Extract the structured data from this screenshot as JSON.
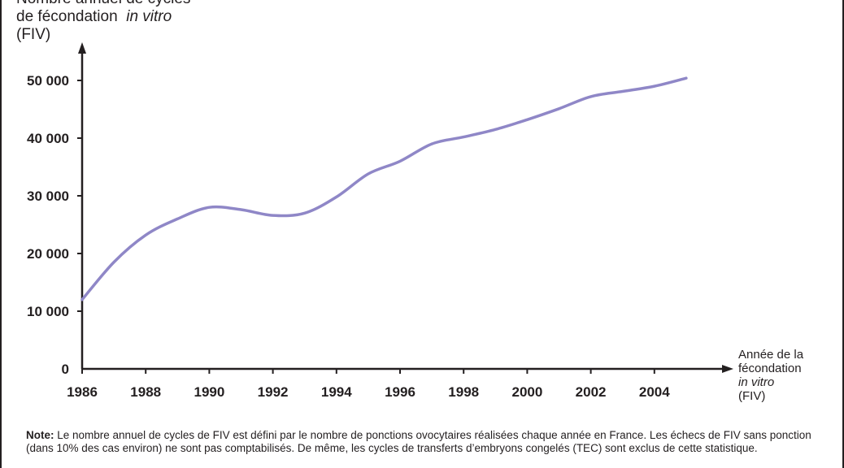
{
  "chart_data": {
    "type": "line",
    "title": "",
    "ylabel_line1": "Nombre annuel de cycles",
    "ylabel_line2_pre": "de fécondation",
    "ylabel_line2_ital": "in vitro",
    "ylabel_line3": "(FIV)",
    "xlabel_line1": "Année de la",
    "xlabel_line2": "fécondation",
    "xlabel_line3_ital": "in vitro",
    "xlabel_line4": "(FIV)",
    "ylim": [
      0,
      52000
    ],
    "xlim": [
      1986,
      2006
    ],
    "yticks": [
      {
        "value": 0,
        "label": "0"
      },
      {
        "value": 10000,
        "label": "10 000"
      },
      {
        "value": 20000,
        "label": "20 000"
      },
      {
        "value": 30000,
        "label": "30 000"
      },
      {
        "value": 40000,
        "label": "40 000"
      },
      {
        "value": 50000,
        "label": "50 000"
      }
    ],
    "xticks": [
      {
        "value": 1986,
        "label": "1986"
      },
      {
        "value": 1988,
        "label": "1988"
      },
      {
        "value": 1990,
        "label": "1990"
      },
      {
        "value": 1992,
        "label": "1992"
      },
      {
        "value": 1994,
        "label": "1994"
      },
      {
        "value": 1996,
        "label": "1996"
      },
      {
        "value": 1998,
        "label": "1998"
      },
      {
        "value": 2000,
        "label": "2000"
      },
      {
        "value": 2002,
        "label": "2002"
      },
      {
        "value": 2004,
        "label": "2004"
      }
    ],
    "grid": false,
    "series": [
      {
        "color": "#8f87c7",
        "x": [
          1986,
          1987,
          1988,
          1989,
          1990,
          1991,
          1992,
          1993,
          1994,
          1995,
          1996,
          1997,
          1998,
          1999,
          2000,
          2001,
          2002,
          2003,
          2004,
          2005
        ],
        "values": [
          12000,
          18500,
          23200,
          26000,
          28000,
          27600,
          26600,
          27000,
          29800,
          33800,
          36000,
          39000,
          40200,
          41500,
          43200,
          45100,
          47200,
          48100,
          49000,
          50400
        ]
      }
    ]
  },
  "note": {
    "label": "Note:",
    "text": " Le nombre annuel de cycles de FIV est défini par le nombre de ponctions ovocytaires réalisées chaque année en France. Les  échecs de FIV sans ponction (dans 10% des cas environ) ne sont pas comptabilisés. De même, les cycles de transferts d’embryons congelés (TEC) sont exclus de cette statistique."
  }
}
